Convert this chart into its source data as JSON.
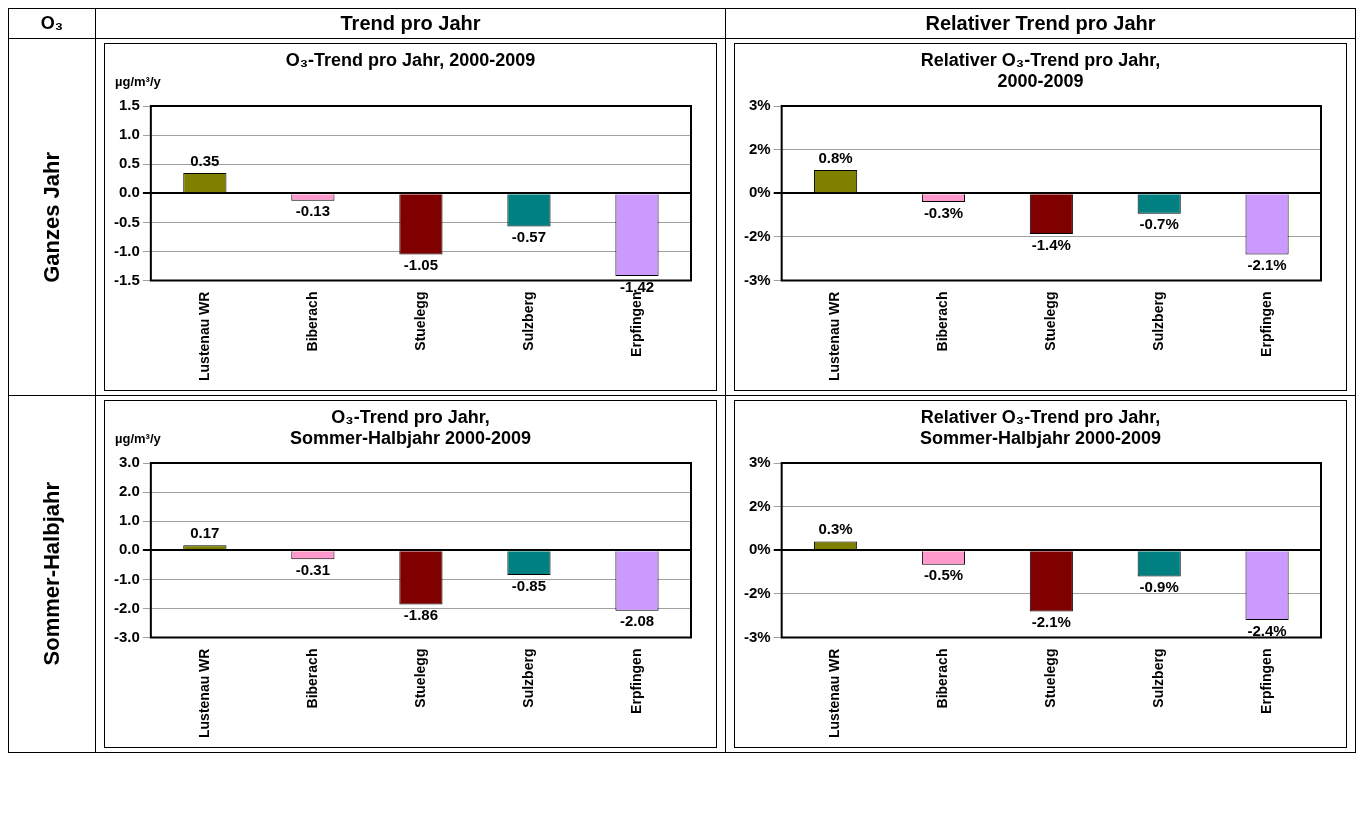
{
  "chart_data": [
    {
      "type": "bar",
      "title": "O₃-Trend pro Jahr,  2000-2009",
      "ylabel": "µg/m³/y",
      "categories": [
        "Lustenau WR",
        "Biberach",
        "Stuelegg",
        "Sulzberg",
        "Erpfingen"
      ],
      "values": [
        0.35,
        -0.13,
        -1.05,
        -0.57,
        -1.42
      ],
      "colors": [
        "#808000",
        "#ff99cc",
        "#800000",
        "#008080",
        "#cc99ff"
      ],
      "ylim": [
        -1.5,
        1.5
      ],
      "yticks": [
        {
          "value": -1.5,
          "label": "-1.5"
        },
        {
          "value": -1,
          "label": "-1.0"
        },
        {
          "value": -0.5,
          "label": "-0.5"
        },
        {
          "value": 0,
          "label": "0.0"
        },
        {
          "value": 0.5,
          "label": "0.5"
        },
        {
          "value": 1,
          "label": "1.0"
        },
        {
          "value": 1.5,
          "label": "1.5"
        }
      ],
      "grid": "y",
      "data_labels": true
    },
    {
      "type": "bar",
      "title": "Relativer O₃-Trend pro Jahr,\n2000-2009",
      "categories": [
        "Lustenau WR",
        "Biberach",
        "Stuelegg",
        "Sulzberg",
        "Erpfingen"
      ],
      "values": [
        0.8,
        -0.3,
        -1.4,
        -0.7,
        -2.1
      ],
      "value_labels": [
        "0.8%",
        "-0.3%",
        "-1.4%",
        "-0.7%",
        "-2.1%"
      ],
      "colors": [
        "#808000",
        "#ff99cc",
        "#800000",
        "#008080",
        "#cc99ff"
      ],
      "ylim": [
        -3,
        3
      ],
      "yticks": [
        {
          "value": -3,
          "label": "-3%"
        },
        {
          "value": -1.5,
          "label": "-2%"
        },
        {
          "value": 0,
          "label": "0%"
        },
        {
          "value": 1.5,
          "label": "2%"
        },
        {
          "value": 3,
          "label": "3%"
        }
      ],
      "grid": "y"
    },
    {
      "type": "bar",
      "title": "O₃-Trend pro Jahr,\nSommer-Halbjahr  2000-2009",
      "ylabel": "µg/m³/y",
      "categories": [
        "Lustenau WR",
        "Biberach",
        "Stuelegg",
        "Sulzberg",
        "Erpfingen"
      ],
      "values": [
        0.17,
        -0.31,
        -1.86,
        -0.85,
        -2.08
      ],
      "colors": [
        "#808000",
        "#ff99cc",
        "#800000",
        "#008080",
        "#cc99ff"
      ],
      "ylim": [
        -3,
        3
      ],
      "yticks": [
        {
          "value": -3,
          "label": "-3.0"
        },
        {
          "value": -2,
          "label": "-2.0"
        },
        {
          "value": -1,
          "label": "-1.0"
        },
        {
          "value": 0,
          "label": "0.0"
        },
        {
          "value": 1,
          "label": "1.0"
        },
        {
          "value": 2,
          "label": "2.0"
        },
        {
          "value": 3,
          "label": "3.0"
        }
      ],
      "grid": "y",
      "data_labels": true
    },
    {
      "type": "bar",
      "title": "Relativer O₃-Trend pro Jahr,\nSommer-Halbjahr  2000-2009",
      "categories": [
        "Lustenau WR",
        "Biberach",
        "Stuelegg",
        "Sulzberg",
        "Erpfingen"
      ],
      "values": [
        0.3,
        -0.5,
        -2.1,
        -0.9,
        -2.4
      ],
      "value_labels": [
        "0.3%",
        "-0.5%",
        "-2.1%",
        "-0.9%",
        "-2.4%"
      ],
      "colors": [
        "#808000",
        "#ff99cc",
        "#800000",
        "#008080",
        "#cc99ff"
      ],
      "ylim": [
        -3,
        3
      ],
      "yticks": [
        {
          "value": -3,
          "label": "-3%"
        },
        {
          "value": -1.5,
          "label": "-2%"
        },
        {
          "value": 0,
          "label": "0%"
        },
        {
          "value": 1.5,
          "label": "2%"
        },
        {
          "value": 3,
          "label": "3%"
        }
      ],
      "grid": "y"
    },
    {
      "type": "other",
      "annotations": [
        "O₃",
        "Trend pro Jahr",
        "Relativer Trend pro Jahr",
        "Ganzes Jahr",
        "Sommer-Halbjahr"
      ]
    }
  ]
}
